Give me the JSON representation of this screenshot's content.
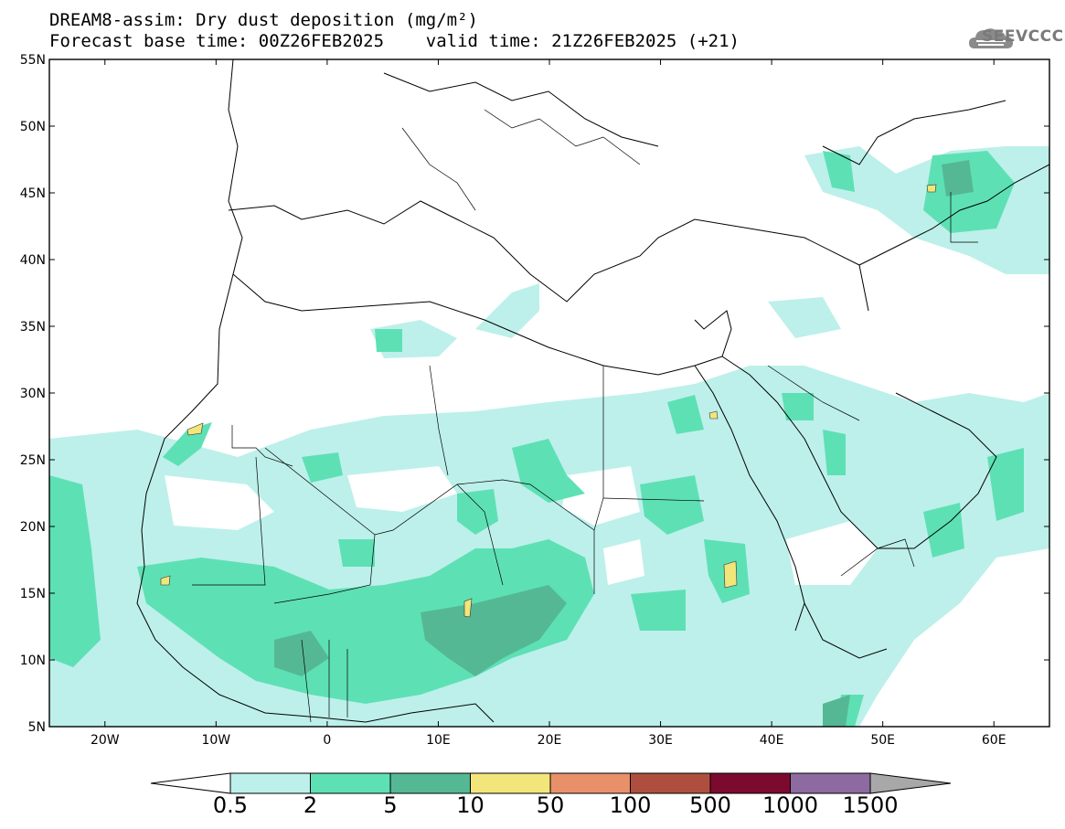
{
  "title": {
    "line1": "DREAM8-assim: Dry dust deposition (mg/m²)",
    "line2": "Forecast base time: 00Z26FEB2025    valid time: 21Z26FEB2025 (+21)"
  },
  "logo": {
    "text": "SEEVCCC",
    "icon": "cloud-icon"
  },
  "map": {
    "lon_range": [
      -25,
      65
    ],
    "lat_range": [
      5,
      55
    ],
    "lat_ticks": [
      "5N",
      "10N",
      "15N",
      "20N",
      "25N",
      "30N",
      "35N",
      "40N",
      "45N",
      "50N",
      "55N"
    ],
    "lon_ticks": [
      "20W",
      "10W",
      "0",
      "10E",
      "20E",
      "30E",
      "40E",
      "50E",
      "60E"
    ]
  },
  "legend": {
    "levels": [
      "0.5",
      "2",
      "5",
      "10",
      "50",
      "100",
      "500",
      "1000",
      "1500"
    ],
    "colors": [
      "#bdf0ea",
      "#5ee0b5",
      "#55b894",
      "#f2e57a",
      "#e8906a",
      "#ae4e3e",
      "#7c0a2e",
      "#8d6aa0",
      "#a8a8a8"
    ],
    "under_color": "#ffffff"
  }
}
